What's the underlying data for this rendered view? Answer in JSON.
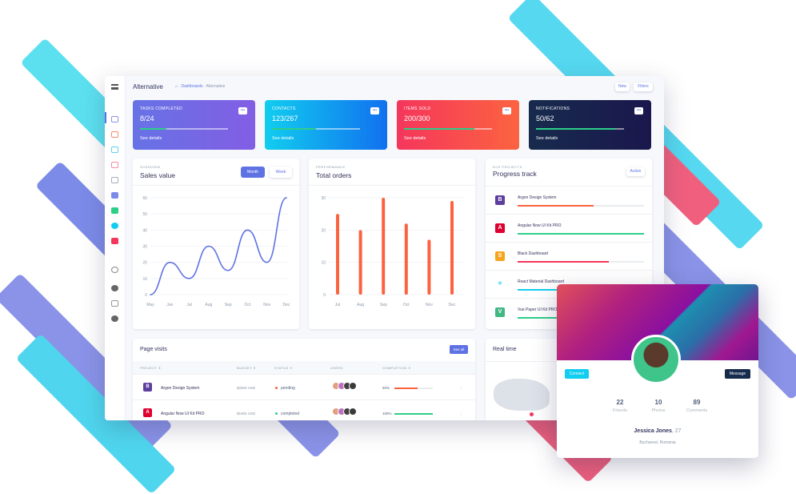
{
  "header": {
    "title": "Alternative",
    "breadcrumb": [
      "Dashboards",
      "Alternative"
    ],
    "new_label": "New",
    "filters_label": "Filters"
  },
  "stats": [
    {
      "label": "TASKS COMPLETED",
      "value": "8/24",
      "progress": 30,
      "link": "See details",
      "colors": [
        "#6772e5",
        "#825ee4"
      ]
    },
    {
      "label": "CONTACTS",
      "value": "123/267",
      "progress": 50,
      "link": "See details",
      "colors": [
        "#11cdef",
        "#1171ef"
      ]
    },
    {
      "label": "ITEMS SOLD",
      "value": "200/300",
      "progress": 80,
      "link": "See details",
      "colors": [
        "#f5365c",
        "#fb6340"
      ]
    },
    {
      "label": "NOTIFICATIONS",
      "value": "50/62",
      "progress": 90,
      "link": "See details",
      "colors": [
        "#172b4d",
        "#1a174d"
      ]
    }
  ],
  "sales": {
    "overline": "OVERVIEW",
    "title": "Sales value",
    "month_label": "Month",
    "week_label": "Week"
  },
  "orders": {
    "overline": "PERFORMANCE",
    "title": "Total orders"
  },
  "chart_data": [
    {
      "type": "line",
      "categories": [
        "May",
        "Jun",
        "Jul",
        "Aug",
        "Sep",
        "Oct",
        "Nov",
        "Dec"
      ],
      "values": [
        0,
        20,
        10,
        30,
        15,
        40,
        20,
        60
      ],
      "ylim": [
        0,
        60
      ],
      "yticks": [
        0,
        10,
        20,
        30,
        40,
        50,
        60
      ],
      "color": "#5e72e4",
      "grid": true
    },
    {
      "type": "bar",
      "categories": [
        "Jul",
        "Aug",
        "Sep",
        "Oct",
        "Nov",
        "Dec"
      ],
      "values": [
        25,
        20,
        30,
        22,
        17,
        29
      ],
      "ylim": [
        0,
        30
      ],
      "yticks": [
        0,
        10,
        20,
        30
      ],
      "color": "#fb6340",
      "grid": true
    }
  ],
  "progress": {
    "overline": "5/23 PROJECTS",
    "title": "Progress track",
    "action_label": "Action",
    "items": [
      {
        "name": "Argon Design System",
        "value": 60,
        "color": "#fb6340",
        "logo": "B"
      },
      {
        "name": "Angular Now UI Kit PRO",
        "value": 100,
        "color": "#2dce89",
        "logo": "A"
      },
      {
        "name": "Black Dashboard",
        "value": 72,
        "color": "#f5365c",
        "logo": "S"
      },
      {
        "name": "React Material Dashboard",
        "value": 90,
        "color": "#11cdef",
        "logo": "⚛"
      },
      {
        "name": "Vue Paper UI Kit PRO",
        "value": 100,
        "color": "#2dce89",
        "logo": "V"
      }
    ]
  },
  "visits": {
    "title": "Page visits",
    "see_all_label": "See all",
    "columns": [
      "PROJECT ⇕",
      "BUDGET ⇕",
      "STATUS ⇕",
      "USERS",
      "COMPLETION ⇕"
    ],
    "rows": [
      {
        "project": "Argon Design System",
        "budget": "$2500 USD",
        "status": "pending",
        "status_color": "#fb6340",
        "completion": "60%",
        "completion_value": 60,
        "bar_color": "#fb6340"
      },
      {
        "project": "Angular Now UI Kit PRO",
        "budget": "$1800 USD",
        "status": "completed",
        "status_color": "#2dce89",
        "completion": "100%",
        "completion_value": 100,
        "bar_color": "#2dce89"
      }
    ]
  },
  "realtime": {
    "title": "Real time"
  },
  "profile": {
    "connect_label": "Connect",
    "message_label": "Message",
    "stats": [
      {
        "value": "22",
        "label": "Friends"
      },
      {
        "value": "10",
        "label": "Photos"
      },
      {
        "value": "89",
        "label": "Comments"
      }
    ],
    "name": "Jessica Jones",
    "age": ", 27",
    "location": "Bucharest, Romania"
  }
}
